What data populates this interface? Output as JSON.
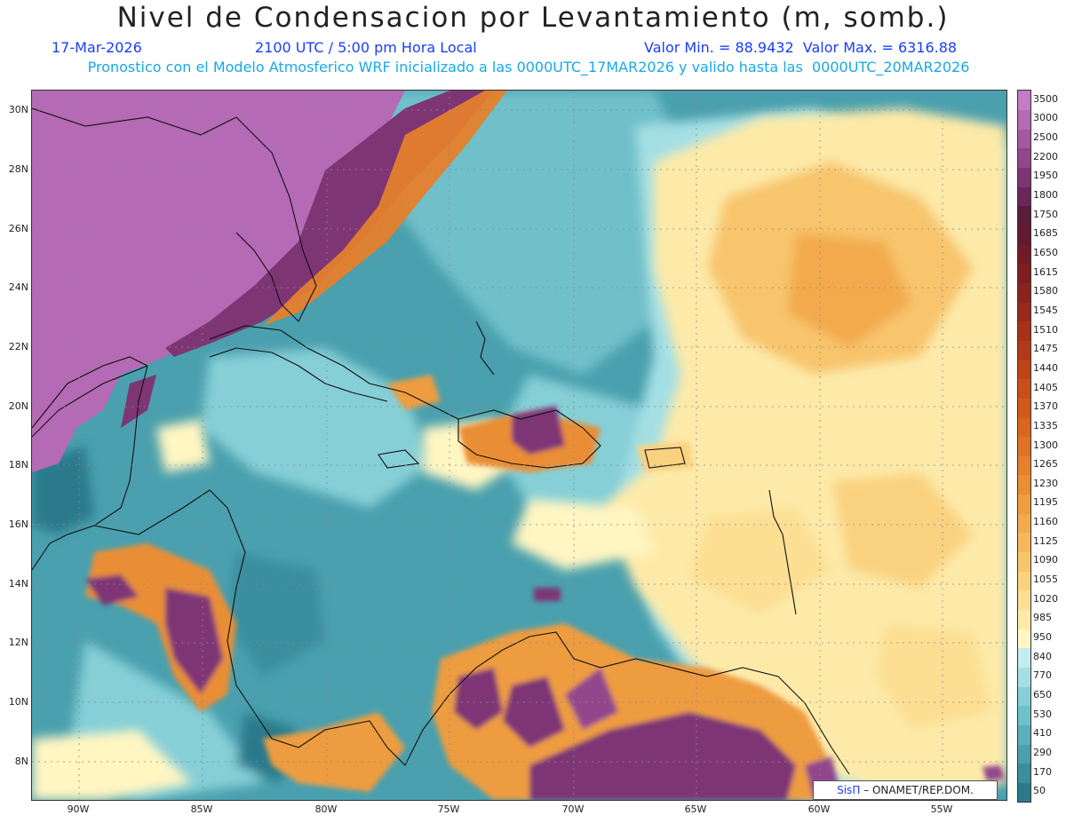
{
  "header": {
    "title": "Nivel de Condensacion por Levantamiento (m, somb.)",
    "date": "17-Mar-2026",
    "time": "2100 UTC / 5:00 pm Hora Local",
    "minmax": "Valor Min. = 88.9432  Valor Max. = 6316.88",
    "model_line": "Pronostico con el Modelo Atmosferico WRF inicializado a las 0000UTC_17MAR2026 y valido hasta las  0000UTC_20MAR2026"
  },
  "axes": {
    "lat_labels": [
      "30N",
      "28N",
      "26N",
      "24N",
      "22N",
      "20N",
      "18N",
      "16N",
      "14N",
      "12N",
      "10N",
      "8N"
    ],
    "lon_labels": [
      "90W",
      "85W",
      "80W",
      "75W",
      "70W",
      "65W",
      "60W",
      "55W"
    ]
  },
  "legend": {
    "levels": [
      "50",
      "170",
      "290",
      "410",
      "530",
      "650",
      "770",
      "840",
      "950",
      "985",
      "1020",
      "1055",
      "1090",
      "1125",
      "1160",
      "1195",
      "1230",
      "1265",
      "1300",
      "1335",
      "1370",
      "1405",
      "1440",
      "1475",
      "1510",
      "1545",
      "1580",
      "1615",
      "1650",
      "1685",
      "1750",
      "1800",
      "1950",
      "2200",
      "2500",
      "3000",
      "3500"
    ],
    "colors": [
      "#2b7a8c",
      "#3a8e9e",
      "#4aa0ae",
      "#5cb0bc",
      "#6fc0ca",
      "#86cfd7",
      "#a4dfe4",
      "#c3ecee",
      "#fff6c2",
      "#fdeaa9",
      "#fcdf93",
      "#fad27f",
      "#f8c56c",
      "#f5b85c",
      "#f2aa4d",
      "#ee9c40",
      "#ea8e35",
      "#e5802c",
      "#e07225",
      "#d9661f",
      "#d15a1b",
      "#c84f19",
      "#be4418",
      "#b33a18",
      "#a73119",
      "#9a291b",
      "#8c221e",
      "#7e1d22",
      "#701a28",
      "#621a30",
      "#5a1c3c",
      "#6a2658",
      "#7e3574",
      "#92468c",
      "#a458a2",
      "#b46ab4",
      "#c47cc4"
    ]
  },
  "credit": {
    "brand": "SisΠ",
    "text": " – ONAMET/REP.DOM."
  }
}
